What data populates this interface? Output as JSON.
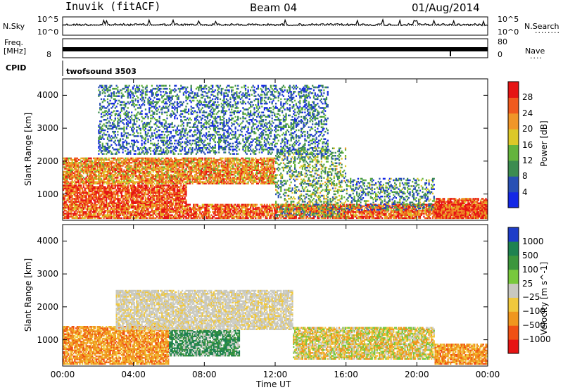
{
  "header": {
    "station": "Inuvik (fitACF)",
    "beam": "Beam 04",
    "date": "01/Aug/2014"
  },
  "top_panels": {
    "nsky_label": "N.Sky",
    "nsky_ticks": [
      "10^5",
      "10^0"
    ],
    "nsearch_label": "N.Search",
    "nsearch_ticks": [
      "10^5",
      "10^0"
    ],
    "freq_label": "Freq.",
    "freq_unit": "[MHz]",
    "freq_ticks": [
      "8"
    ],
    "nave_label": "Nave",
    "nave_ticks": [
      "80",
      "0"
    ],
    "cpid_label": "CPID",
    "cpid_value": "twofsound 3503"
  },
  "chart_data": [
    {
      "type": "heatmap",
      "panel": "power",
      "ylabel": "Slant Range [km]",
      "xlabel": "Time UT",
      "x_ticks": [
        "00:00",
        "04:00",
        "08:00",
        "12:00",
        "16:00",
        "20:00",
        "00:00"
      ],
      "y_ticks": [
        1000,
        2000,
        3000,
        4000
      ],
      "ylim": [
        200,
        4500
      ],
      "xlim_hours": [
        0,
        24
      ],
      "colorbar": {
        "label": "Power [dB]",
        "ticks": [
          "4",
          "8",
          "12",
          "16",
          "20",
          "24",
          "28"
        ],
        "range": [
          0,
          30
        ],
        "colors": [
          "#1428e6",
          "#2850b4",
          "#3c8c50",
          "#64b43c",
          "#dcc828",
          "#f09628",
          "#f05a1e",
          "#e61414"
        ]
      },
      "bands": [
        {
          "t": [
            0,
            24
          ],
          "r": [
            250,
            700
          ],
          "level": 0.8
        },
        {
          "t": [
            0,
            7
          ],
          "r": [
            700,
            1300
          ],
          "level": 0.85
        },
        {
          "t": [
            0,
            12
          ],
          "r": [
            1300,
            2100
          ],
          "level": 0.7
        },
        {
          "t": [
            12,
            16
          ],
          "r": [
            300,
            2400
          ],
          "level": 0.4
        },
        {
          "t": [
            16,
            21
          ],
          "r": [
            500,
            1500
          ],
          "level": 0.3
        },
        {
          "t": [
            21,
            24
          ],
          "r": [
            250,
            900
          ],
          "level": 0.85
        },
        {
          "t": [
            2,
            15
          ],
          "r": [
            2200,
            4300
          ],
          "level": 0.25
        }
      ]
    },
    {
      "type": "heatmap",
      "panel": "velocity",
      "ylabel": "Slant Range [km]",
      "xlabel": "Time UT",
      "x_ticks": [
        "00:00",
        "04:00",
        "08:00",
        "12:00",
        "16:00",
        "20:00",
        "00:00"
      ],
      "y_ticks": [
        1000,
        2000,
        3000,
        4000
      ],
      "ylim": [
        200,
        4500
      ],
      "xlim_hours": [
        0,
        24
      ],
      "colorbar": {
        "label": "Velocity [m s^-1]",
        "ticks": [
          "1000",
          "500",
          "100",
          "25",
          "−25",
          "−100",
          "−500",
          "−1000"
        ],
        "colors": [
          "#1e3cc8",
          "#1e8250",
          "#3c963c",
          "#78c83c",
          "#c8c8c0",
          "#f0c83c",
          "#f0961e",
          "#f05014",
          "#e61414"
        ]
      },
      "bands": [
        {
          "t": [
            0,
            6
          ],
          "r": [
            250,
            1400
          ],
          "level": "orange"
        },
        {
          "t": [
            6,
            10
          ],
          "r": [
            500,
            1300
          ],
          "level": "green"
        },
        {
          "t": [
            3,
            13
          ],
          "r": [
            1300,
            2500
          ],
          "level": "grey"
        },
        {
          "t": [
            13,
            21
          ],
          "r": [
            400,
            1400
          ],
          "level": "orange-light"
        },
        {
          "t": [
            21,
            24
          ],
          "r": [
            250,
            900
          ],
          "level": "orange"
        }
      ]
    }
  ]
}
